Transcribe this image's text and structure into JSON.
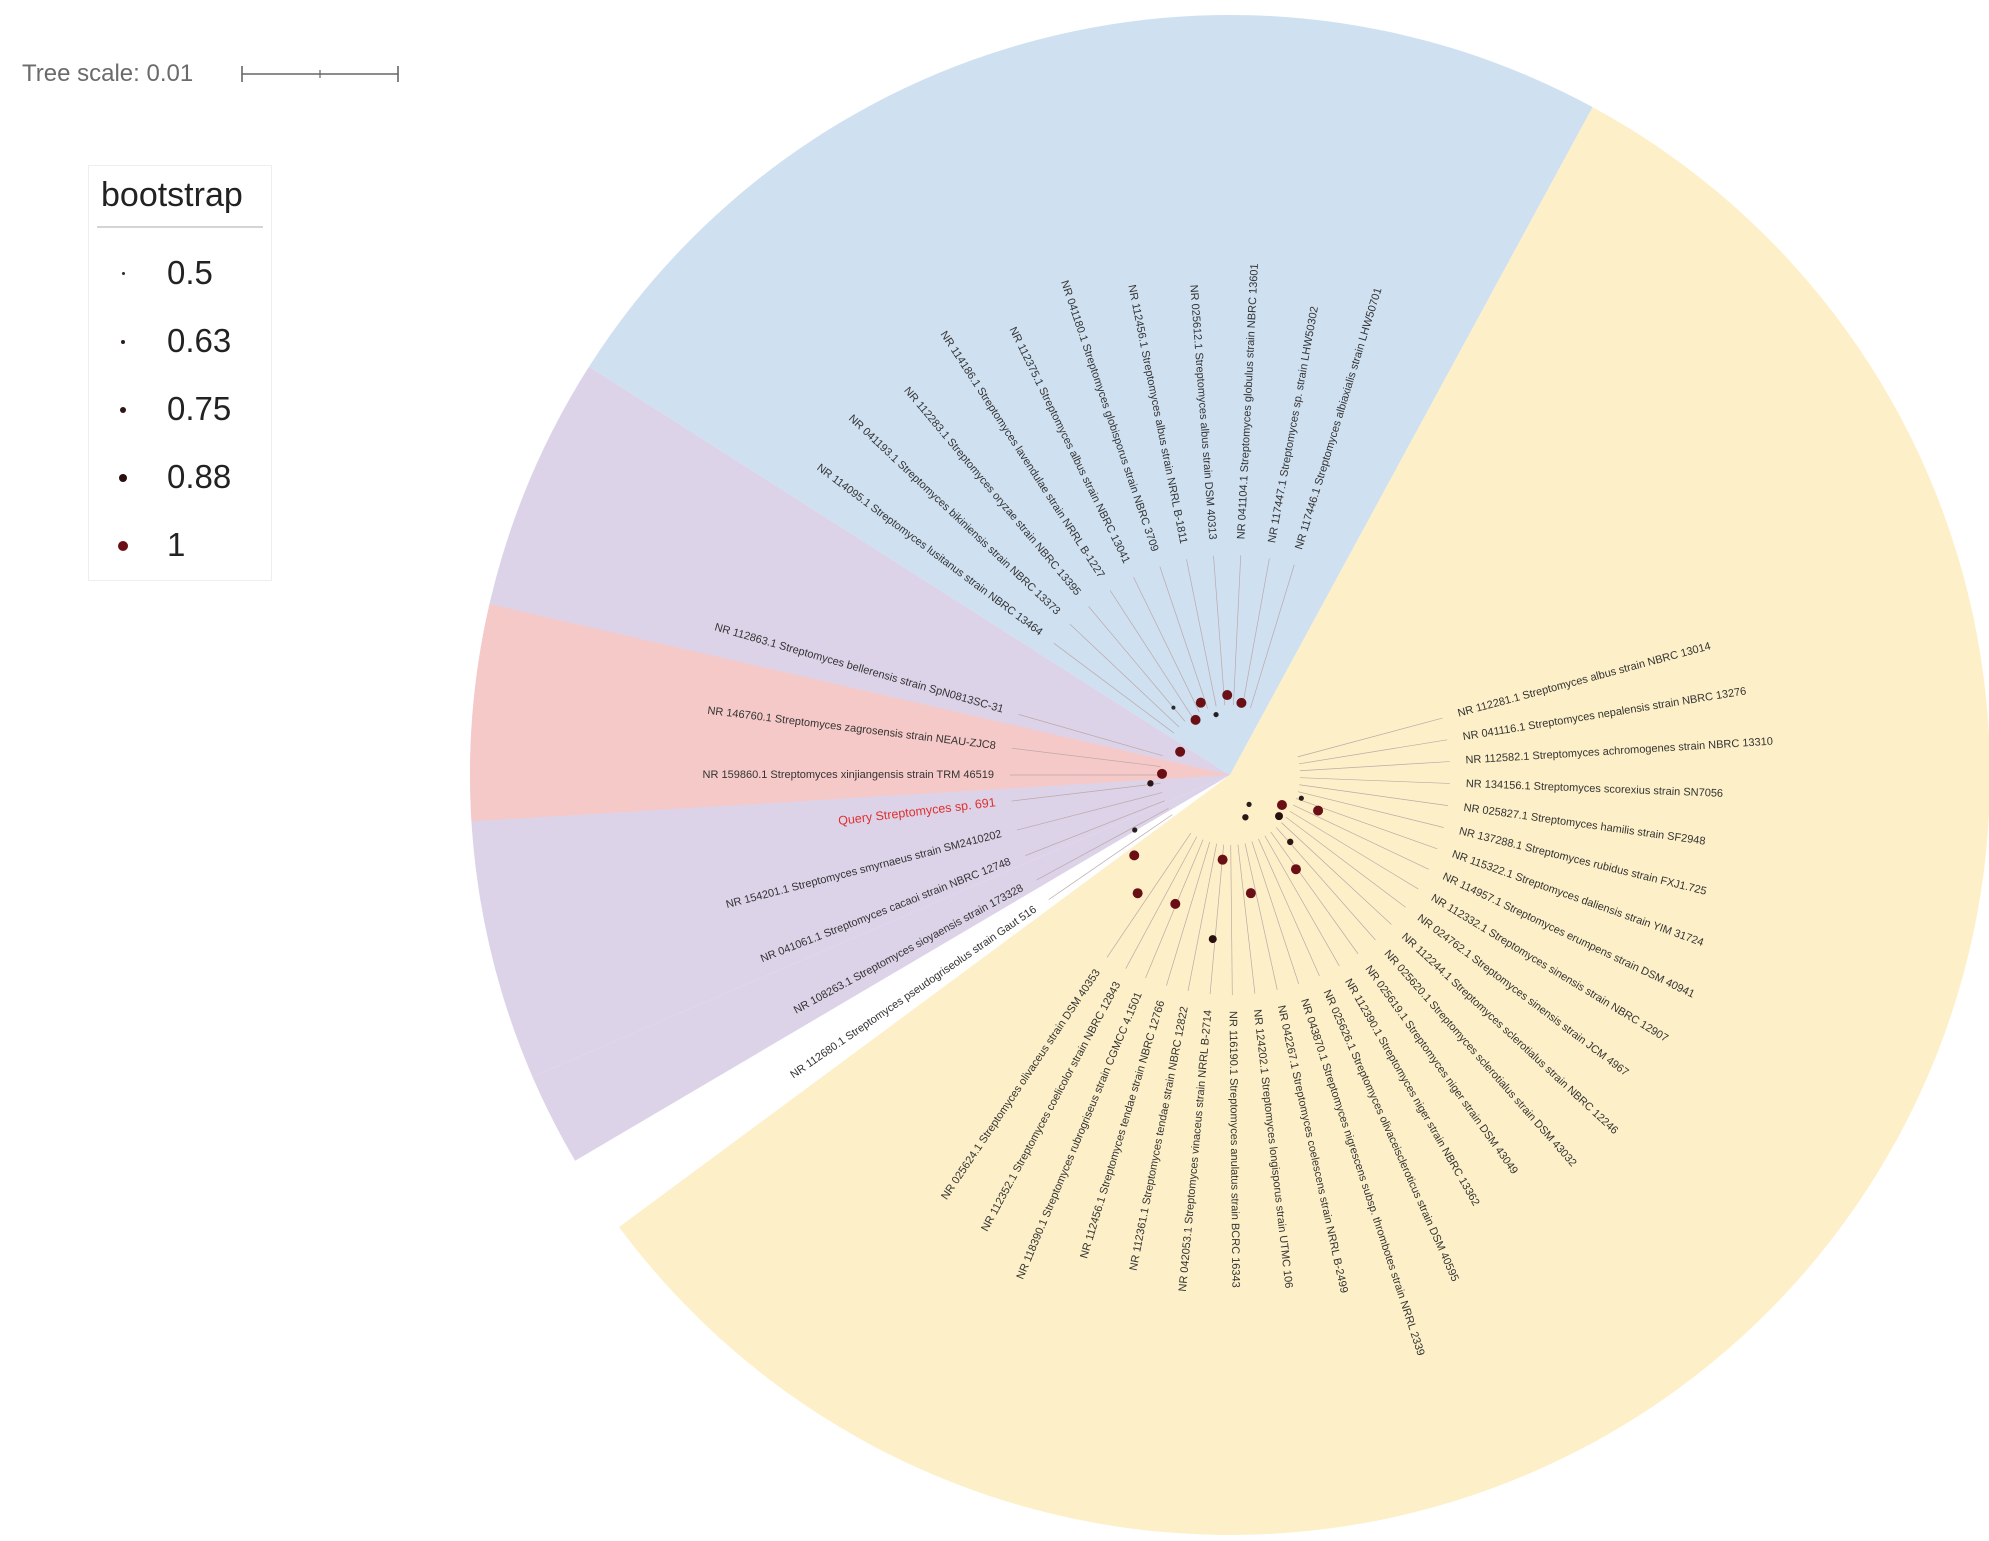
{
  "scale": {
    "label": "Tree scale: 0.01"
  },
  "legend": {
    "title": "bootstrap",
    "items": [
      {
        "label": "0.5",
        "color": "#2a2a2a"
      },
      {
        "label": "0.63",
        "color": "#2a1f1f"
      },
      {
        "label": "0.75",
        "color": "#2f1616"
      },
      {
        "label": "0.88",
        "color": "#2a0f0f"
      },
      {
        "label": "1",
        "color": "#6b0f16"
      }
    ]
  },
  "clades": [
    {
      "name": "blue-clade",
      "color": "#cfe0f1"
    },
    {
      "name": "yellow-clade",
      "color": "#fdf0c8"
    },
    {
      "name": "purple-clade",
      "color": "#dcd3e9"
    },
    {
      "name": "red-clade",
      "color": "#f6c9c9"
    }
  ],
  "leaves": [
    {
      "label": "NR 114095.1 Streptomyces lusitanus strain NBRC 13464",
      "query": false
    },
    {
      "label": "NR 041193.1 Streptomyces bikiniensis strain NBRC 13373",
      "query": false
    },
    {
      "label": "NR 112283.1 Streptomyces oryzae strain NBRC 13395",
      "query": false
    },
    {
      "label": "NR 114186.1 Streptomyces lavendulae strain NRRL B-1227",
      "query": false
    },
    {
      "label": "NR 112375.1 Streptomyces albus strain NBRC 13041",
      "query": false
    },
    {
      "label": "NR 041180.1 Streptomyces globisporus strain NBRC 3709",
      "query": false
    },
    {
      "label": "NR 112456.1 Streptomyces albus strain NRRL B-1811",
      "query": false
    },
    {
      "label": "NR 025612.1 Streptomyces albus strain DSM 40313",
      "query": false
    },
    {
      "label": "NR 041104.1 Streptomyces globulus strain NBRC 13601",
      "query": false
    },
    {
      "label": "NR 117447.1 Streptomyces sp. strain LHW50302",
      "query": false
    },
    {
      "label": "NR 117446.1 Streptomyces albiaxialis strain LHW50701",
      "query": false
    },
    {
      "label": "NR 112863.1 Streptomyces bellerensis strain SpN0813SC-31",
      "query": false
    },
    {
      "label": "NR 146760.1 Streptomyces zagrosensis strain NEAU-ZJC8",
      "query": false
    },
    {
      "label": "NR 159860.1 Streptomyces xinjiangensis strain TRM 46519",
      "query": false
    },
    {
      "label": "Query Streptomyces sp. 691",
      "query": true
    },
    {
      "label": "NR 154201.1 Streptomyces smyrnaeus strain SM2410202",
      "query": false
    },
    {
      "label": "NR 041061.1 Streptomyces cacaoi strain NBRC 12748",
      "query": false
    },
    {
      "label": "NR 108263.1 Streptomyces sioyaensis strain 173328",
      "query": false
    },
    {
      "label": "NR 112680.1 Streptomyces pseudogriseolus strain Gaut 516",
      "query": false
    },
    {
      "label": "NR 025624.1 Streptomyces olivaceus strain DSM 40353",
      "query": false
    },
    {
      "label": "NR 112352.1 Streptomyces coelicolor strain NBRC 12843",
      "query": false
    },
    {
      "label": "NR 118390.1 Streptomyces rubrogriseus strain CGMCC 4.1501",
      "query": false
    },
    {
      "label": "NR 112456.1 Streptomyces tendae strain NBRC 12766",
      "query": false
    },
    {
      "label": "NR 112361.1 Streptomyces tendae strain NBRC 12822",
      "query": false
    },
    {
      "label": "NR 042053.1 Streptomyces vinaceus strain NRRL B-2714",
      "query": false
    },
    {
      "label": "NR 116190.1 Streptomyces anulatus strain BCRC 16343",
      "query": false
    },
    {
      "label": "NR 124202.1 Streptomyces longisporus strain UTMC 106",
      "query": false
    },
    {
      "label": "NR 042267.1 Streptomyces coelescens strain NRRL B-2499",
      "query": false
    },
    {
      "label": "NR 043870.1 Streptomyces nigrescens subsp. thrombotes strain NRRL 2339",
      "query": false
    },
    {
      "label": "NR 025626.1 Streptomyces olivaceiscleroticus strain DSM 40595",
      "query": false
    },
    {
      "label": "NR 112390.1 Streptomyces niger strain NBRC 13362",
      "query": false
    },
    {
      "label": "NR 025619.1 Streptomyces niger strain DSM 43049",
      "query": false
    },
    {
      "label": "NR 025620.1 Streptomyces sclerotialus strain DSM 43032",
      "query": false
    },
    {
      "label": "NR 112244.1 Streptomyces sclerotialus strain NBRC 12246",
      "query": false
    },
    {
      "label": "NR 024762.1 Streptomyces sinensis strain JCM 4967",
      "query": false
    },
    {
      "label": "NR 112332.1 Streptomyces sinensis strain NBRC 12907",
      "query": false
    },
    {
      "label": "NR 114957.1 Streptomyces erumpens strain DSM 40941",
      "query": false
    },
    {
      "label": "NR 115322.1 Streptomyces daliensis strain YIM 31724",
      "query": false
    },
    {
      "label": "NR 137288.1 Streptomyces rubidus strain FXJ1.725",
      "query": false
    },
    {
      "label": "NR 025827.1 Streptomyces hamilis strain SF2948",
      "query": false
    },
    {
      "label": "NR 134156.1 Streptomyces scorexius strain SN7056",
      "query": false
    },
    {
      "label": "NR 112582.1 Streptomyces achromogenes strain NBRC 13310",
      "query": false
    },
    {
      "label": "NR 041116.1 Streptomyces nepalensis strain NBRC 13276",
      "query": false
    },
    {
      "label": "NR 112281.1 Streptomyces albus strain NBRC 13014",
      "query": false
    }
  ]
}
